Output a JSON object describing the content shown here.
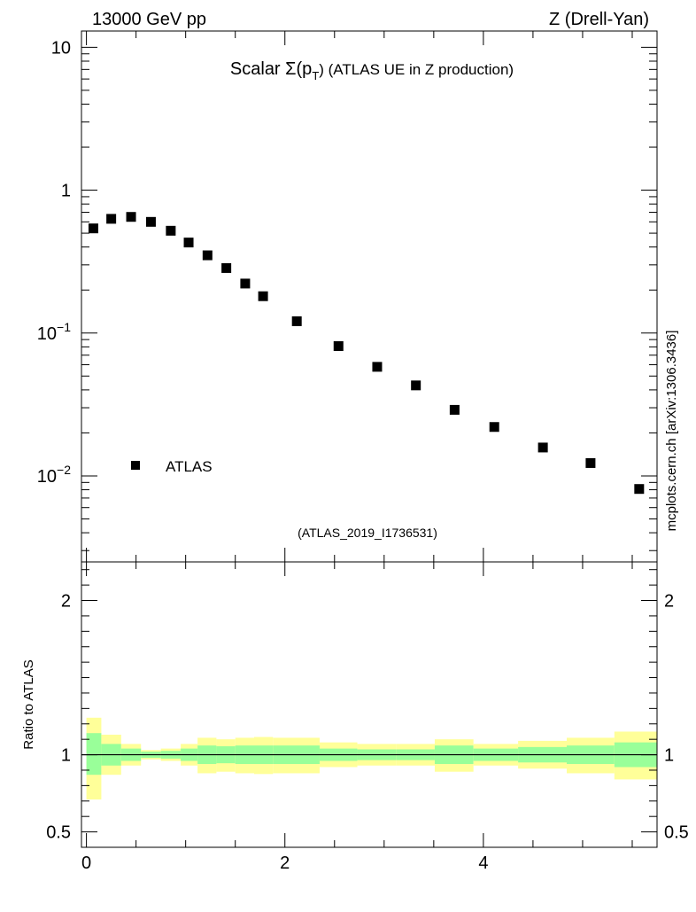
{
  "header": {
    "left": "13000 GeV pp",
    "right": "Z (Drell-Yan)"
  },
  "side_label": "mcplots.cern.ch [arXiv:1306.3436]",
  "chart_data": [
    {
      "type": "scatter",
      "panel": "main",
      "title_prefix": "Scalar Σ(p",
      "title_subscript": "T",
      "title_suffix": ") (ATLAS UE in Z production)",
      "watermark": "(ATLAS_2019_I1736531)",
      "yscale": "log",
      "ylim": [
        0.0025,
        13
      ],
      "xlim": [
        -0.05,
        5.75
      ],
      "y_ticks": [
        {
          "value": 10,
          "label": "10"
        },
        {
          "value": 1,
          "label": "1"
        },
        {
          "value": 0.1,
          "base": "10",
          "exp": "−1"
        },
        {
          "value": 0.01,
          "base": "10",
          "exp": "−2"
        }
      ],
      "legend": {
        "label": "ATLAS",
        "placement": "lower-left"
      },
      "series": [
        {
          "name": "ATLAS",
          "marker": "square",
          "color": "#000000",
          "x": [
            0.07,
            0.25,
            0.45,
            0.65,
            0.85,
            1.03,
            1.22,
            1.41,
            1.6,
            1.78,
            2.12,
            2.54,
            2.93,
            3.32,
            3.71,
            4.11,
            4.6,
            5.08,
            5.57
          ],
          "y": [
            0.54,
            0.63,
            0.65,
            0.6,
            0.52,
            0.43,
            0.35,
            0.285,
            0.222,
            0.181,
            0.121,
            0.081,
            0.058,
            0.043,
            0.029,
            0.022,
            0.0158,
            0.0123,
            0.0081
          ]
        }
      ]
    },
    {
      "type": "area",
      "panel": "ratio",
      "ylabel": "Ratio to ATLAS",
      "ylim": [
        0.4,
        2.25
      ],
      "xlim": [
        -0.05,
        5.75
      ],
      "y_ticks": [
        {
          "value": 2,
          "label": "2"
        },
        {
          "value": 1,
          "label": "1"
        },
        {
          "value": 0.5,
          "label": "0.5"
        }
      ],
      "x_ticks": [
        {
          "value": 0,
          "label": "0"
        },
        {
          "value": 2,
          "label": "2"
        },
        {
          "value": 4,
          "label": "4"
        }
      ],
      "reference_line": 1,
      "bands": [
        {
          "x0": 0.0,
          "x1": 0.15,
          "outer_lo": 0.71,
          "outer_hi": 1.24,
          "inner_lo": 0.87,
          "inner_hi": 1.14
        },
        {
          "x0": 0.15,
          "x1": 0.35,
          "outer_lo": 0.87,
          "outer_hi": 1.13,
          "inner_lo": 0.93,
          "inner_hi": 1.07
        },
        {
          "x0": 0.35,
          "x1": 0.55,
          "outer_lo": 0.93,
          "outer_hi": 1.07,
          "inner_lo": 0.96,
          "inner_hi": 1.04
        },
        {
          "x0": 0.55,
          "x1": 0.75,
          "outer_lo": 0.97,
          "outer_hi": 1.03,
          "inner_lo": 0.98,
          "inner_hi": 1.02
        },
        {
          "x0": 0.75,
          "x1": 0.95,
          "outer_lo": 0.96,
          "outer_hi": 1.04,
          "inner_lo": 0.975,
          "inner_hi": 1.025
        },
        {
          "x0": 0.95,
          "x1": 1.12,
          "outer_lo": 0.93,
          "outer_hi": 1.07,
          "inner_lo": 0.96,
          "inner_hi": 1.04
        },
        {
          "x0": 1.12,
          "x1": 1.31,
          "outer_lo": 0.88,
          "outer_hi": 1.11,
          "inner_lo": 0.94,
          "inner_hi": 1.06
        },
        {
          "x0": 1.31,
          "x1": 1.5,
          "outer_lo": 0.89,
          "outer_hi": 1.1,
          "inner_lo": 0.945,
          "inner_hi": 1.055
        },
        {
          "x0": 1.5,
          "x1": 1.69,
          "outer_lo": 0.88,
          "outer_hi": 1.11,
          "inner_lo": 0.94,
          "inner_hi": 1.06
        },
        {
          "x0": 1.69,
          "x1": 1.88,
          "outer_lo": 0.875,
          "outer_hi": 1.115,
          "inner_lo": 0.94,
          "inner_hi": 1.06
        },
        {
          "x0": 1.88,
          "x1": 2.35,
          "outer_lo": 0.88,
          "outer_hi": 1.11,
          "inner_lo": 0.94,
          "inner_hi": 1.06
        },
        {
          "x0": 2.35,
          "x1": 2.73,
          "outer_lo": 0.92,
          "outer_hi": 1.08,
          "inner_lo": 0.96,
          "inner_hi": 1.04
        },
        {
          "x0": 2.73,
          "x1": 3.12,
          "outer_lo": 0.93,
          "outer_hi": 1.07,
          "inner_lo": 0.965,
          "inner_hi": 1.035
        },
        {
          "x0": 3.12,
          "x1": 3.51,
          "outer_lo": 0.93,
          "outer_hi": 1.07,
          "inner_lo": 0.965,
          "inner_hi": 1.035
        },
        {
          "x0": 3.51,
          "x1": 3.9,
          "outer_lo": 0.89,
          "outer_hi": 1.1,
          "inner_lo": 0.94,
          "inner_hi": 1.06
        },
        {
          "x0": 3.9,
          "x1": 4.35,
          "outer_lo": 0.93,
          "outer_hi": 1.07,
          "inner_lo": 0.96,
          "inner_hi": 1.04
        },
        {
          "x0": 4.35,
          "x1": 4.84,
          "outer_lo": 0.91,
          "outer_hi": 1.09,
          "inner_lo": 0.95,
          "inner_hi": 1.05
        },
        {
          "x0": 4.84,
          "x1": 5.32,
          "outer_lo": 0.88,
          "outer_hi": 1.11,
          "inner_lo": 0.94,
          "inner_hi": 1.06
        },
        {
          "x0": 5.32,
          "x1": 5.81,
          "outer_lo": 0.84,
          "outer_hi": 1.15,
          "inner_lo": 0.92,
          "inner_hi": 1.08
        }
      ],
      "colors": {
        "outer": "#ffff99",
        "inner": "#99ff99",
        "line": "#000000"
      }
    }
  ]
}
